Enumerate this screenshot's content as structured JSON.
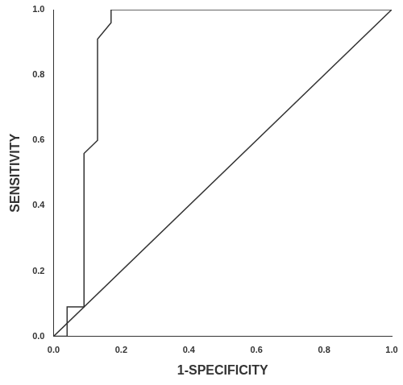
{
  "chart_data": {
    "type": "line",
    "x_label": "1-SPECIFICITY",
    "y_label": "SENSITIVITY",
    "xlim": [
      0,
      1
    ],
    "ylim": [
      0,
      1
    ],
    "xticks": [
      {
        "value": 0,
        "label": "0.0"
      },
      0.2,
      0.4,
      0.6,
      0.8,
      {
        "value": 1,
        "label": "1.0"
      }
    ],
    "yticks": [
      {
        "value": 0,
        "label": "0.0"
      },
      0.2,
      0.4,
      0.6,
      0.8,
      {
        "value": 1,
        "label": "1.0"
      }
    ],
    "grid": false,
    "series": [
      {
        "color": "#333333",
        "line_style": "solid",
        "x": [
          0,
          0.04,
          0.04,
          0.09,
          0.09,
          0.13,
          0.13,
          0.17,
          0.17,
          1
        ],
        "values": [
          0,
          0,
          0.09,
          0.09,
          0.56,
          0.6,
          0.91,
          0.96,
          1,
          1
        ]
      },
      {
        "color": "#333333",
        "line_style": "solid",
        "x": [
          0,
          1
        ],
        "values": [
          0,
          1
        ]
      }
    ]
  }
}
